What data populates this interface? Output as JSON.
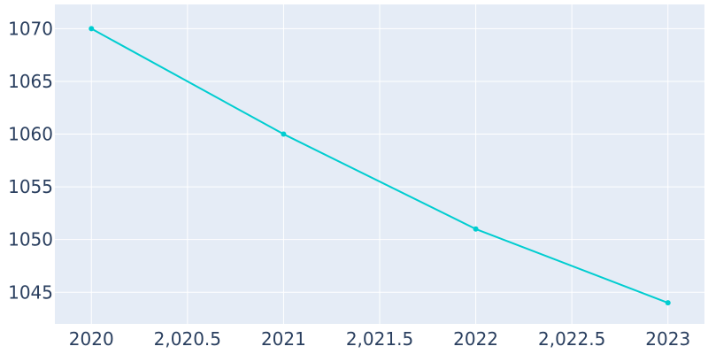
{
  "chart_data": {
    "type": "line",
    "title": "",
    "xlabel": "",
    "ylabel": "",
    "x": [
      2020,
      2021,
      2022,
      2023
    ],
    "series": [
      {
        "values": [
          1070,
          1060,
          1051,
          1044
        ]
      }
    ],
    "xlim": [
      2019.81,
      2023.19
    ],
    "ylim": [
      1042.0,
      1072.3
    ],
    "x_ticks": [
      {
        "value": 2020,
        "label": "2020"
      },
      {
        "value": 2020.5,
        "label": "2,020.5"
      },
      {
        "value": 2021,
        "label": "2021"
      },
      {
        "value": 2021.5,
        "label": "2,021.5"
      },
      {
        "value": 2022,
        "label": "2022"
      },
      {
        "value": 2022.5,
        "label": "2,022.5"
      },
      {
        "value": 2023,
        "label": "2023"
      }
    ],
    "y_ticks": [
      {
        "value": 1045,
        "label": "1045"
      },
      {
        "value": 1050,
        "label": "1050"
      },
      {
        "value": 1055,
        "label": "1055"
      },
      {
        "value": 1060,
        "label": "1060"
      },
      {
        "value": 1065,
        "label": "1065"
      },
      {
        "value": 1070,
        "label": "1070"
      }
    ],
    "grid": true,
    "legend": "none",
    "colors": {
      "plot_background": "#e5ecf6",
      "grid": "#ffffff",
      "line": "#00cdd0",
      "text": "#2a3f5f"
    }
  }
}
